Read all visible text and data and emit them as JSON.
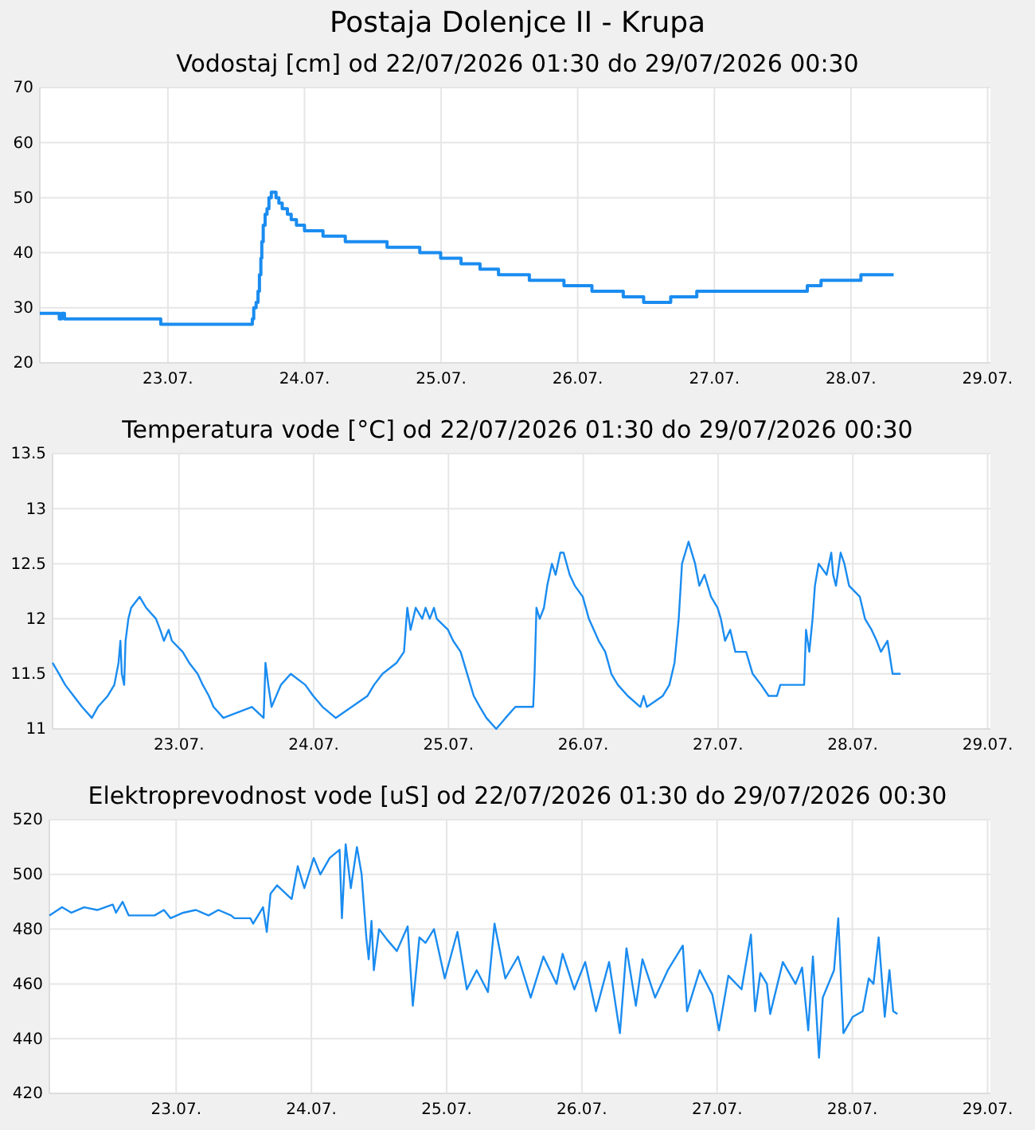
{
  "chart_data": [
    {
      "type": "step",
      "title": "Postaja Dolenjce II - Krupa",
      "subtitle": "Vodostaj [cm] od 22/07/2026 01:30 do 29/07/2026 00:30",
      "grid": true,
      "xlim": [
        "2026-07-22T01:30",
        "2026-07-29T00:30"
      ],
      "ylim": [
        20,
        70
      ],
      "yticks": [
        20,
        30,
        40,
        50,
        60,
        70
      ],
      "xticks": [
        {
          "value": "2026-07-23",
          "label": "23.07."
        },
        {
          "value": "2026-07-24",
          "label": "24.07."
        },
        {
          "value": "2026-07-25",
          "label": "25.07."
        },
        {
          "value": "2026-07-26",
          "label": "26.07."
        },
        {
          "value": "2026-07-27",
          "label": "27.07."
        },
        {
          "value": "2026-07-28",
          "label": "28.07."
        },
        {
          "value": "2026-07-29",
          "label": "29.07."
        }
      ],
      "x": [
        "2026-07-22T01:30",
        "2026-07-22T04:55",
        "2026-07-22T05:20",
        "2026-07-22T05:50",
        "2026-07-22T22:45",
        "2026-07-23T14:50",
        "2026-07-23T15:05",
        "2026-07-23T15:30",
        "2026-07-23T15:50",
        "2026-07-23T16:05",
        "2026-07-23T16:20",
        "2026-07-23T16:30",
        "2026-07-23T16:45",
        "2026-07-23T17:05",
        "2026-07-23T17:25",
        "2026-07-23T17:45",
        "2026-07-23T18:10",
        "2026-07-23T19:00",
        "2026-07-23T19:30",
        "2026-07-23T20:05",
        "2026-07-23T21:00",
        "2026-07-23T21:40",
        "2026-07-23T22:35",
        "2026-07-24T00:00",
        "2026-07-24T03:15",
        "2026-07-24T07:10",
        "2026-07-24T14:30",
        "2026-07-24T20:15",
        "2026-07-24T23:55",
        "2026-07-25T03:30",
        "2026-07-25T06:50",
        "2026-07-25T10:05",
        "2026-07-25T15:30",
        "2026-07-25T21:35",
        "2026-07-26T02:30",
        "2026-07-26T08:00",
        "2026-07-26T11:35",
        "2026-07-26T16:20",
        "2026-07-26T20:55",
        "2026-07-27T16:20",
        "2026-07-27T18:45",
        "2026-07-28T01:45",
        "2026-07-28T07:30"
      ],
      "series": [
        {
          "color": "#1a8cf0",
          "values": [
            29,
            28,
            29,
            28,
            27,
            28,
            30,
            31,
            33,
            36,
            39,
            42,
            45,
            47,
            48,
            50,
            51,
            50,
            49,
            48,
            47,
            46,
            45,
            44,
            43,
            42,
            41,
            40,
            39,
            38,
            37,
            36,
            35,
            34,
            33,
            32,
            31,
            32,
            33,
            34,
            35,
            36,
            36
          ]
        }
      ]
    },
    {
      "type": "line",
      "title": "Temperatura vode [°C] od 22/07/2026 01:30 do 29/07/2026 00:30",
      "grid": true,
      "xlim": [
        "2026-07-22T01:30",
        "2026-07-29T00:30"
      ],
      "ylim": [
        11,
        13.5
      ],
      "yticks": [
        11,
        11.5,
        12,
        12.5,
        13,
        13.5
      ],
      "xticks": [
        {
          "value": "2026-07-23",
          "label": "23.07."
        },
        {
          "value": "2026-07-24",
          "label": "24.07."
        },
        {
          "value": "2026-07-25",
          "label": "25.07."
        },
        {
          "value": "2026-07-26",
          "label": "26.07."
        },
        {
          "value": "2026-07-27",
          "label": "27.07."
        },
        {
          "value": "2026-07-28",
          "label": "28.07."
        },
        {
          "value": "2026-07-29",
          "label": "29.07."
        }
      ],
      "x": [
        "2026-07-22T01:30",
        "2026-07-22T02:40",
        "2026-07-22T03:45",
        "2026-07-22T05:15",
        "2026-07-22T06:45",
        "2026-07-22T08:30",
        "2026-07-22T09:35",
        "2026-07-22T11:20",
        "2026-07-22T12:30",
        "2026-07-22T13:15",
        "2026-07-22T13:35",
        "2026-07-22T13:50",
        "2026-07-22T14:15",
        "2026-07-22T14:30",
        "2026-07-22T15:00",
        "2026-07-22T15:30",
        "2026-07-22T17:00",
        "2026-07-22T18:10",
        "2026-07-22T19:55",
        "2026-07-22T20:40",
        "2026-07-22T21:20",
        "2026-07-22T22:10",
        "2026-07-22T22:45",
        "2026-07-23T00:40",
        "2026-07-23T01:50",
        "2026-07-23T03:20",
        "2026-07-23T04:15",
        "2026-07-23T05:20",
        "2026-07-23T06:10",
        "2026-07-23T07:55",
        "2026-07-23T13:00",
        "2026-07-23T15:05",
        "2026-07-23T15:25",
        "2026-07-23T15:55",
        "2026-07-23T16:30",
        "2026-07-23T18:10",
        "2026-07-23T19:55",
        "2026-07-23T22:30",
        "2026-07-23T23:55",
        "2026-07-24T01:35",
        "2026-07-24T03:55",
        "2026-07-24T09:35",
        "2026-07-24T10:45",
        "2026-07-24T12:15",
        "2026-07-24T14:45",
        "2026-07-24T16:05",
        "2026-07-24T16:40",
        "2026-07-24T17:15",
        "2026-07-24T18:10",
        "2026-07-24T19:20",
        "2026-07-24T19:55",
        "2026-07-24T20:40",
        "2026-07-24T21:25",
        "2026-07-24T21:55",
        "2026-07-24T23:55",
        "2026-07-25T00:50",
        "2026-07-25T02:10",
        "2026-07-25T03:20",
        "2026-07-25T04:30",
        "2026-07-25T05:35",
        "2026-07-25T06:45",
        "2026-07-25T08:30",
        "2026-07-25T10:10",
        "2026-07-25T11:55",
        "2026-07-25T15:05",
        "2026-07-25T15:20",
        "2026-07-25T15:40",
        "2026-07-25T16:15",
        "2026-07-25T17:00",
        "2026-07-25T17:35",
        "2026-07-25T18:25",
        "2026-07-25T19:05",
        "2026-07-25T19:55",
        "2026-07-25T20:30",
        "2026-07-25T21:35",
        "2026-07-25T22:30",
        "2026-07-25T23:55",
        "2026-07-26T01:00",
        "2026-07-26T02:45",
        "2026-07-26T03:55",
        "2026-07-26T05:00",
        "2026-07-26T06:10",
        "2026-07-26T07:55",
        "2026-07-26T10:10",
        "2026-07-26T10:45",
        "2026-07-26T11:20",
        "2026-07-26T14:10",
        "2026-07-26T15:20",
        "2026-07-26T16:15",
        "2026-07-26T17:00",
        "2026-07-26T17:35",
        "2026-07-26T18:45",
        "2026-07-26T19:20",
        "2026-07-26T19:55",
        "2026-07-26T20:40",
        "2026-07-26T21:35",
        "2026-07-26T22:45",
        "2026-07-26T23:55",
        "2026-07-27T00:30",
        "2026-07-27T01:15",
        "2026-07-27T02:10",
        "2026-07-27T03:05",
        "2026-07-27T05:00",
        "2026-07-27T06:10",
        "2026-07-27T07:40",
        "2026-07-27T09:00",
        "2026-07-27T10:30",
        "2026-07-27T11:05",
        "2026-07-27T15:20",
        "2026-07-27T15:40",
        "2026-07-27T16:15",
        "2026-07-27T16:50",
        "2026-07-27T17:15",
        "2026-07-27T17:55",
        "2026-07-27T19:20",
        "2026-07-27T20:10",
        "2026-07-27T20:30",
        "2026-07-27T21:00",
        "2026-07-27T21:50",
        "2026-07-27T22:30",
        "2026-07-27T23:20",
        "2026-07-28T01:15",
        "2026-07-28T02:10",
        "2026-07-28T03:20",
        "2026-07-28T04:15",
        "2026-07-28T05:00",
        "2026-07-28T06:10",
        "2026-07-28T07:05",
        "2026-07-28T08:30"
      ],
      "series": [
        {
          "color": "#1a8cf0",
          "values": [
            11.6,
            11.5,
            11.4,
            11.3,
            11.2,
            11.1,
            11.2,
            11.3,
            11.4,
            11.6,
            11.8,
            11.5,
            11.4,
            11.8,
            12.0,
            12.1,
            12.2,
            12.1,
            12.0,
            11.9,
            11.8,
            11.9,
            11.8,
            11.7,
            11.6,
            11.5,
            11.4,
            11.3,
            11.2,
            11.1,
            11.2,
            11.1,
            11.6,
            11.4,
            11.2,
            11.4,
            11.5,
            11.4,
            11.3,
            11.2,
            11.1,
            11.3,
            11.4,
            11.5,
            11.6,
            11.7,
            12.1,
            11.9,
            12.1,
            12.0,
            12.1,
            12.0,
            12.1,
            12.0,
            11.9,
            11.8,
            11.7,
            11.5,
            11.3,
            11.2,
            11.1,
            11.0,
            11.1,
            11.2,
            11.2,
            11.5,
            12.1,
            12.0,
            12.1,
            12.3,
            12.5,
            12.4,
            12.6,
            12.6,
            12.4,
            12.3,
            12.2,
            12.0,
            11.8,
            11.7,
            11.5,
            11.4,
            11.3,
            11.2,
            11.3,
            11.2,
            11.3,
            11.4,
            11.6,
            12.0,
            12.5,
            12.7,
            12.6,
            12.5,
            12.3,
            12.4,
            12.2,
            12.1,
            12.0,
            11.8,
            11.9,
            11.7,
            11.7,
            11.5,
            11.4,
            11.3,
            11.3,
            11.4,
            11.4,
            11.9,
            11.7,
            12.0,
            12.3,
            12.5,
            12.4,
            12.6,
            12.4,
            12.3,
            12.6,
            12.5,
            12.3,
            12.2,
            12.0,
            11.9,
            11.8,
            11.7,
            11.8,
            11.5,
            11.5
          ]
        }
      ]
    },
    {
      "type": "line",
      "title": "Elektroprevodnost vode [uS] od 22/07/2026 01:30 do 29/07/2026 00:30",
      "grid": true,
      "xlim": [
        "2026-07-22T01:30",
        "2026-07-29T00:30"
      ],
      "ylim": [
        420,
        520
      ],
      "yticks": [
        420,
        440,
        460,
        480,
        500,
        520
      ],
      "xticks": [
        {
          "value": "2026-07-23",
          "label": "23.07."
        },
        {
          "value": "2026-07-24",
          "label": "24.07."
        },
        {
          "value": "2026-07-25",
          "label": "25.07."
        },
        {
          "value": "2026-07-26",
          "label": "26.07."
        },
        {
          "value": "2026-07-27",
          "label": "27.07."
        },
        {
          "value": "2026-07-28",
          "label": "28.07."
        },
        {
          "value": "2026-07-29",
          "label": "29.07."
        }
      ],
      "x": [
        "2026-07-22T01:30",
        "2026-07-22T03:45",
        "2026-07-22T05:25",
        "2026-07-22T07:40",
        "2026-07-22T10:00",
        "2026-07-22T12:45",
        "2026-07-22T13:20",
        "2026-07-22T14:30",
        "2026-07-22T15:35",
        "2026-07-22T20:10",
        "2026-07-22T21:50",
        "2026-07-22T23:00",
        "2026-07-23T01:15",
        "2026-07-23T03:30",
        "2026-07-23T05:45",
        "2026-07-23T07:30",
        "2026-07-23T09:45",
        "2026-07-23T10:20",
        "2026-07-23T13:10",
        "2026-07-23T13:40",
        "2026-07-23T15:25",
        "2026-07-23T16:05",
        "2026-07-23T16:45",
        "2026-07-23T17:55",
        "2026-07-23T20:30",
        "2026-07-23T21:35",
        "2026-07-23T22:45",
        "2026-07-24T00:25",
        "2026-07-24T01:35",
        "2026-07-24T03:15",
        "2026-07-24T05:00",
        "2026-07-24T05:25",
        "2026-07-24T06:05",
        "2026-07-24T07:00",
        "2026-07-24T08:05",
        "2026-07-24T08:55",
        "2026-07-24T09:45",
        "2026-07-24T10:10",
        "2026-07-24T10:40",
        "2026-07-24T11:05",
        "2026-07-24T12:00",
        "2026-07-24T13:30",
        "2026-07-24T15:10",
        "2026-07-24T17:05",
        "2026-07-24T18:00",
        "2026-07-24T19:10",
        "2026-07-24T20:15",
        "2026-07-24T21:45",
        "2026-07-24T23:40",
        "2026-07-25T01:55",
        "2026-07-25T03:35",
        "2026-07-25T05:20",
        "2026-07-25T07:20",
        "2026-07-25T08:30",
        "2026-07-25T10:25",
        "2026-07-25T12:40",
        "2026-07-25T14:55",
        "2026-07-25T17:10",
        "2026-07-25T19:30",
        "2026-07-25T20:35",
        "2026-07-25T22:40",
        "2026-07-26T00:35",
        "2026-07-26T02:30",
        "2026-07-26T04:50",
        "2026-07-26T06:45",
        "2026-07-26T07:55",
        "2026-07-26T09:35",
        "2026-07-26T10:45",
        "2026-07-26T13:00",
        "2026-07-26T15:15",
        "2026-07-26T17:55",
        "2026-07-26T18:40",
        "2026-07-26T20:55",
        "2026-07-26T23:10",
        "2026-07-27T00:20",
        "2026-07-27T02:00",
        "2026-07-27T04:20",
        "2026-07-27T06:00",
        "2026-07-27T06:45",
        "2026-07-27T07:40",
        "2026-07-27T08:50",
        "2026-07-27T09:25",
        "2026-07-27T11:40",
        "2026-07-27T13:55",
        "2026-07-27T15:05",
        "2026-07-27T16:10",
        "2026-07-27T17:00",
        "2026-07-27T18:05",
        "2026-07-27T18:45",
        "2026-07-27T20:45",
        "2026-07-27T21:30",
        "2026-07-27T22:25",
        "2026-07-28T00:05",
        "2026-07-28T01:50",
        "2026-07-28T02:55",
        "2026-07-28T03:45",
        "2026-07-28T04:40",
        "2026-07-28T05:45",
        "2026-07-28T06:35",
        "2026-07-28T07:15",
        "2026-07-28T08:00"
      ],
      "series": [
        {
          "color": "#1a8cf0",
          "values": [
            485,
            488,
            486,
            488,
            487,
            489,
            486,
            490,
            485,
            485,
            487,
            484,
            486,
            487,
            485,
            487,
            485,
            484,
            484,
            482,
            488,
            479,
            493,
            496,
            491,
            503,
            495,
            506,
            500,
            506,
            509,
            484,
            511,
            495,
            510,
            500,
            477,
            469,
            483,
            465,
            480,
            476,
            472,
            481,
            452,
            477,
            475,
            480,
            462,
            479,
            458,
            465,
            457,
            482,
            462,
            470,
            455,
            470,
            460,
            471,
            458,
            468,
            450,
            468,
            442,
            473,
            452,
            469,
            455,
            465,
            474,
            450,
            465,
            456,
            443,
            463,
            458,
            478,
            450,
            464,
            460,
            449,
            468,
            460,
            466,
            443,
            470,
            433,
            455,
            465,
            484,
            442,
            448,
            450,
            462,
            460,
            477,
            448,
            465,
            450,
            449
          ]
        }
      ]
    }
  ]
}
